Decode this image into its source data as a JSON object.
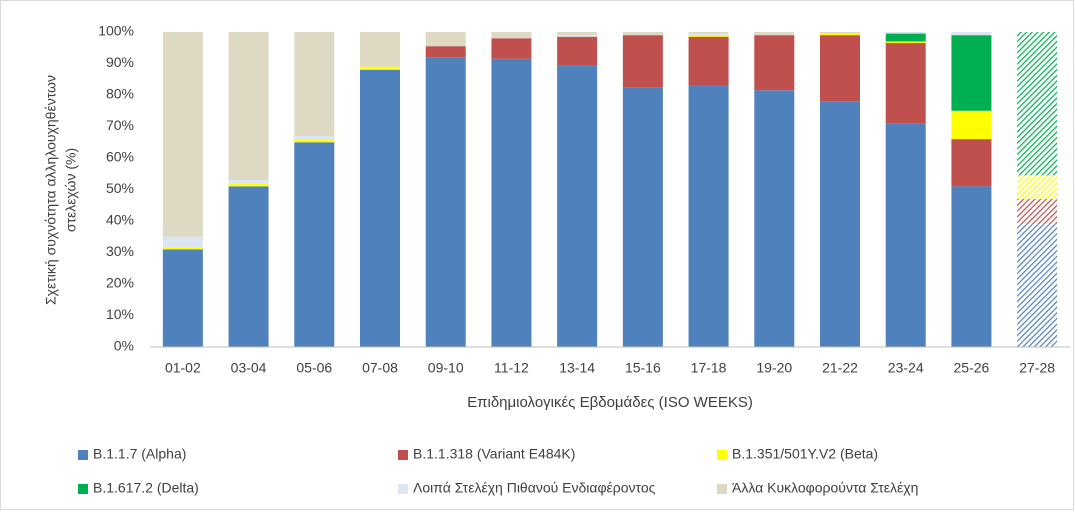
{
  "chart_data": {
    "type": "stacked_bar",
    "ylabel": [
      "Σχετική συχνότητα αλληλουχηθέντων",
      "στελεχών (%)"
    ],
    "xlabel": "Επιδημιολογικές Εβδομάδες (ISO WEEKS)",
    "categories": [
      "01-02",
      "03-04",
      "05-06",
      "07-08",
      "09-10",
      "11-12",
      "13-14",
      "15-16",
      "17-18",
      "19-20",
      "21-22",
      "23-24",
      "25-26",
      "27-28"
    ],
    "series": [
      {
        "name": "B.1.1.7 (Alpha)",
        "color": "#4f81bd",
        "values": [
          31,
          51,
          65,
          88,
          92,
          91.5,
          89.5,
          82.5,
          83,
          81.5,
          78,
          71,
          51,
          39
        ]
      },
      {
        "name": "B.1.1.318 (Variant E484K)",
        "color": "#c0504d",
        "values": [
          0,
          0,
          0,
          0,
          3.5,
          6.5,
          9,
          16.5,
          15.5,
          17.5,
          21,
          25.5,
          15,
          8
        ]
      },
      {
        "name": "B.1.351/501Y.V2 (Beta)",
        "color": "#ffff00",
        "values": [
          0.5,
          1,
          1,
          1,
          0,
          0,
          0,
          0,
          0.5,
          0,
          0.5,
          0.5,
          9,
          7.5
        ]
      },
      {
        "name": "B.1.617.2 (Delta)",
        "color": "#00b050",
        "values": [
          0,
          0,
          0,
          0,
          0,
          0,
          0,
          0,
          0,
          0,
          0,
          2.5,
          24,
          45.5
        ]
      },
      {
        "name": "Λοιπά Στελέχη Πιθανού Ενδιαφέροντος",
        "color": "#dce6f2",
        "values": [
          3.5,
          1,
          1,
          0,
          0,
          0,
          0.5,
          0,
          0.5,
          0,
          0,
          0.5,
          1,
          0
        ]
      },
      {
        "name": "Άλλα Κυκλοφορούντα Στελέχη",
        "color": "#ddd9c3",
        "values": [
          65,
          47,
          33,
          11,
          4.5,
          2,
          1,
          1,
          0.5,
          1,
          0.5,
          0,
          0,
          0
        ]
      }
    ],
    "hatched": [
      13
    ],
    "ylim": [
      0,
      100
    ],
    "yticks": [
      {
        "value": 0,
        "label": "0%"
      },
      {
        "value": 10,
        "label": "10%"
      },
      {
        "value": 20,
        "label": "20%"
      },
      {
        "value": 30,
        "label": "30%"
      },
      {
        "value": 40,
        "label": "40%"
      },
      {
        "value": 50,
        "label": "50%"
      },
      {
        "value": 60,
        "label": "60%"
      },
      {
        "value": 70,
        "label": "70%"
      },
      {
        "value": 80,
        "label": "80%"
      },
      {
        "value": 90,
        "label": "90%"
      },
      {
        "value": 100,
        "label": "100%"
      }
    ],
    "grid": false,
    "legend_position": "bottom"
  }
}
